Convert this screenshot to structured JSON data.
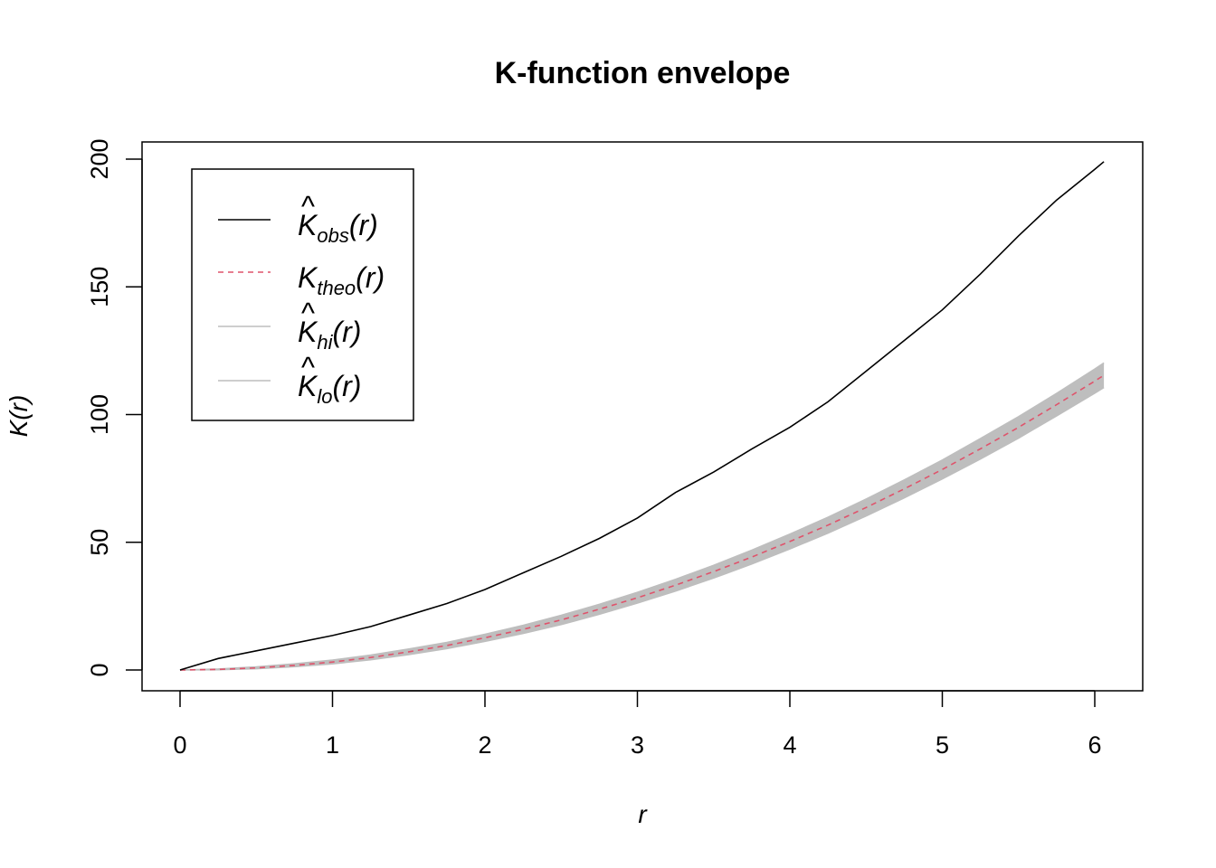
{
  "chart_data": {
    "type": "line",
    "title": "K-function envelope",
    "xlabel": "r",
    "ylabel": "K(r)",
    "xlim": [
      0,
      6.06
    ],
    "ylim": [
      0,
      200
    ],
    "x_ticks": [
      "0",
      "1",
      "2",
      "3",
      "4",
      "5",
      "6"
    ],
    "y_ticks": [
      "0",
      "50",
      "100",
      "150",
      "200"
    ],
    "legend_position": "top-left",
    "grid": false,
    "series": [
      {
        "name": "K̂obs(r)",
        "legend_base": "K",
        "legend_hat": true,
        "legend_sub": "obs",
        "legend_suffix": "(r)",
        "style": "solid",
        "color": "#000000",
        "x": [
          0,
          0.25,
          0.5,
          0.75,
          1.0,
          1.25,
          1.5,
          1.75,
          2.0,
          2.25,
          2.5,
          2.75,
          3.0,
          3.25,
          3.5,
          3.75,
          4.0,
          4.25,
          4.5,
          4.75,
          5.0,
          5.25,
          5.5,
          5.75,
          6.0,
          6.06
        ],
        "y": [
          0,
          4.5,
          7.5,
          10.5,
          13.5,
          17,
          21.5,
          26,
          31.5,
          38,
          44.5,
          51.5,
          59.5,
          69.5,
          77.5,
          86.5,
          95,
          105,
          117,
          129,
          141,
          155,
          170,
          184,
          196,
          199
        ]
      },
      {
        "name": "Ktheo(r)",
        "legend_base": "K",
        "legend_hat": false,
        "legend_sub": "theo",
        "legend_suffix": "(r)",
        "style": "dashed",
        "color": "#DF536B",
        "x": [
          0,
          0.25,
          0.5,
          0.75,
          1.0,
          1.25,
          1.5,
          1.75,
          2.0,
          2.25,
          2.5,
          2.75,
          3.0,
          3.25,
          3.5,
          3.75,
          4.0,
          4.25,
          4.5,
          4.75,
          5.0,
          5.25,
          5.5,
          5.75,
          6.0,
          6.06
        ],
        "y": [
          0,
          0.2,
          0.8,
          1.8,
          3.1,
          4.9,
          7.1,
          9.6,
          12.6,
          15.9,
          19.6,
          23.8,
          28.3,
          33.2,
          38.5,
          44.2,
          50.3,
          56.7,
          63.6,
          70.9,
          78.5,
          86.6,
          95.0,
          103.9,
          113.1,
          115.4
        ]
      },
      {
        "name": "K̂hi(r)",
        "legend_base": "K",
        "legend_hat": true,
        "legend_sub": "hi",
        "legend_suffix": "(r)",
        "style": "solid",
        "color": "#BEBEBE",
        "x": [
          0,
          0.25,
          0.5,
          0.75,
          1.0,
          1.25,
          1.5,
          1.75,
          2.0,
          2.25,
          2.5,
          2.75,
          3.0,
          3.25,
          3.5,
          3.75,
          4.0,
          4.25,
          4.5,
          4.75,
          5.0,
          5.25,
          5.5,
          5.75,
          6.0,
          6.06
        ],
        "y": [
          0,
          0.4,
          1.2,
          2.4,
          3.9,
          5.8,
          8.2,
          10.8,
          14.0,
          17.5,
          21.4,
          25.7,
          30.4,
          35.5,
          41.0,
          46.9,
          53.2,
          59.8,
          66.9,
          74.4,
          82.2,
          90.6,
          99.2,
          108.3,
          117.8,
          120.2
        ]
      },
      {
        "name": "K̂lo(r)",
        "legend_base": "K",
        "legend_hat": true,
        "legend_sub": "lo",
        "legend_suffix": "(r)",
        "style": "solid",
        "color": "#BEBEBE",
        "x": [
          0,
          0.25,
          0.5,
          0.75,
          1.0,
          1.25,
          1.5,
          1.75,
          2.0,
          2.25,
          2.5,
          2.75,
          3.0,
          3.25,
          3.5,
          3.75,
          4.0,
          4.25,
          4.5,
          4.75,
          5.0,
          5.25,
          5.5,
          5.75,
          6.0,
          6.06
        ],
        "y": [
          0,
          0.1,
          0.5,
          1.3,
          2.4,
          4.0,
          6.0,
          8.4,
          11.2,
          14.3,
          17.8,
          21.8,
          26.2,
          30.9,
          36.0,
          41.5,
          47.4,
          53.6,
          60.3,
          67.4,
          74.8,
          82.6,
          90.8,
          99.5,
          108.4,
          110.6
        ]
      }
    ]
  }
}
